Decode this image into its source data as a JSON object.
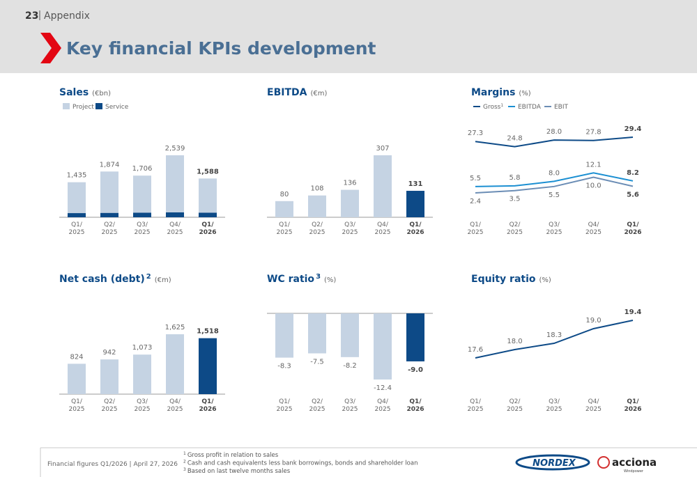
{
  "header": {
    "page": "23",
    "section": "Appendix",
    "title": "Key financial KPIs development"
  },
  "chart_data": [
    {
      "type": "stacked_bar",
      "title": "Sales",
      "unit": "(€bn)",
      "categories": [
        "Q1/\n2025",
        "Q2/\n2025",
        "Q3/\n2025",
        "Q4/\n2025",
        "Q1/\n2026"
      ],
      "series": [
        {
          "name": "Project",
          "color": "#c5d3e3",
          "values": [
            1265,
            1694,
            1516,
            2339,
            1398
          ]
        },
        {
          "name": "Service",
          "color": "#0d4a87",
          "values": [
            170,
            180,
            190,
            200,
            190
          ]
        }
      ],
      "totals": [
        1435,
        1874,
        1706,
        2539,
        1588
      ],
      "total_labels": [
        "1,435",
        "1,874",
        "1,706",
        "2,539",
        "1,588"
      ]
    },
    {
      "type": "bar",
      "title": "EBITDA",
      "unit": "(€m)",
      "categories": [
        "Q1/\n2025",
        "Q2/\n2025",
        "Q3/\n2025",
        "Q4/\n2025",
        "Q1/\n2026"
      ],
      "values": [
        80,
        108,
        136,
        307,
        131
      ],
      "value_labels": [
        "80",
        "108",
        "136",
        "307",
        "131"
      ],
      "colors": [
        "#c5d3e3",
        "#c5d3e3",
        "#c5d3e3",
        "#c5d3e3",
        "#0d4a87"
      ]
    },
    {
      "type": "line",
      "title": "Margins",
      "unit": "(%)",
      "categories": [
        "Q1/\n2025",
        "Q2/\n2025",
        "Q3/\n2025",
        "Q4/\n2025",
        "Q1/\n2026"
      ],
      "series": [
        {
          "name": "Gross",
          "note": "1",
          "color": "#0d4a87",
          "values": [
            27.3,
            24.8,
            28.0,
            27.8,
            29.4
          ],
          "value_labels": [
            "27.3",
            "24.8",
            "28.0",
            "27.8",
            "29.4"
          ]
        },
        {
          "name": "EBITDA",
          "color": "#1b8fd2",
          "values": [
            5.5,
            5.8,
            8.0,
            12.1,
            8.2
          ],
          "value_labels": [
            "5.5",
            "5.8",
            "8.0",
            "12.1",
            "8.2"
          ]
        },
        {
          "name": "EBIT",
          "color": "#6b8db5",
          "values": [
            2.4,
            3.5,
            5.5,
            10.0,
            5.6
          ],
          "value_labels": [
            "2.4",
            "3.5",
            "5.5",
            "10.0",
            "5.6"
          ]
        }
      ]
    },
    {
      "type": "bar",
      "title": "Net cash (debt)",
      "title_note": "2",
      "unit": "(€m)",
      "categories": [
        "Q1/\n2025",
        "Q2/\n2025",
        "Q3/\n2025",
        "Q4/\n2025",
        "Q1/\n2026"
      ],
      "values": [
        824,
        942,
        1073,
        1625,
        1518
      ],
      "value_labels": [
        "824",
        "942",
        "1,073",
        "1,625",
        "1,518"
      ],
      "colors": [
        "#c5d3e3",
        "#c5d3e3",
        "#c5d3e3",
        "#c5d3e3",
        "#0d4a87"
      ]
    },
    {
      "type": "bar",
      "title": "WC ratio",
      "title_note": "3",
      "unit": "(%)",
      "categories": [
        "Q1/\n2025",
        "Q2/\n2025",
        "Q3/\n2025",
        "Q4/\n2025",
        "Q1/\n2026"
      ],
      "values": [
        -8.3,
        -7.5,
        -8.2,
        -12.4,
        -9.0
      ],
      "value_labels": [
        "-8.3",
        "-7.5",
        "-8.2",
        "-12.4",
        "-9.0"
      ],
      "colors": [
        "#c5d3e3",
        "#c5d3e3",
        "#c5d3e3",
        "#c5d3e3",
        "#0d4a87"
      ]
    },
    {
      "type": "line",
      "title": "Equity ratio",
      "unit": "(%)",
      "categories": [
        "Q1/\n2025",
        "Q2/\n2025",
        "Q3/\n2025",
        "Q4/\n2025",
        "Q1/\n2026"
      ],
      "series": [
        {
          "color": "#0d4a87",
          "values": [
            17.6,
            18.0,
            18.3,
            19.0,
            19.4
          ],
          "value_labels": [
            "17.6",
            "18.0",
            "18.3",
            "19.0",
            "19.4"
          ]
        }
      ]
    }
  ],
  "footer": {
    "text": "Financial figures Q1/2026 | April 27, 2026",
    "footnotes": [
      {
        "mark": "1",
        "text": "Gross profit in relation to sales"
      },
      {
        "mark": "2",
        "text": "Cash and cash equivalents less bank borrowings, bonds and shareholder loan"
      },
      {
        "mark": "3",
        "text": "Based on last twelve months sales"
      }
    ],
    "logos": {
      "nordex": "NORDEX",
      "acciona": "acciona",
      "acciona_sub": "Windpower"
    }
  }
}
